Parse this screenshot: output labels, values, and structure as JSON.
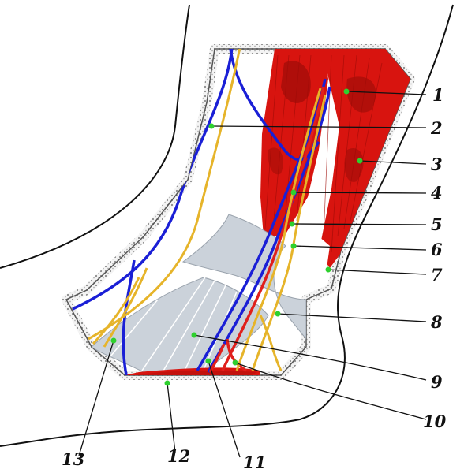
{
  "figure": {
    "callouts": [
      "1",
      "2",
      "3",
      "4",
      "5",
      "6",
      "7",
      "8",
      "9",
      "10",
      "11",
      "12",
      "13"
    ]
  },
  "colors": {
    "muscle": "#d8140f",
    "muscle_dark": "#9e0c08",
    "vein": "#1a1fd6",
    "nerve": "#e6b42a",
    "artery": "#e0201c",
    "retinaculum": "#cbd2da",
    "pointer": "#2ed02e",
    "skin_border": "#999999"
  }
}
